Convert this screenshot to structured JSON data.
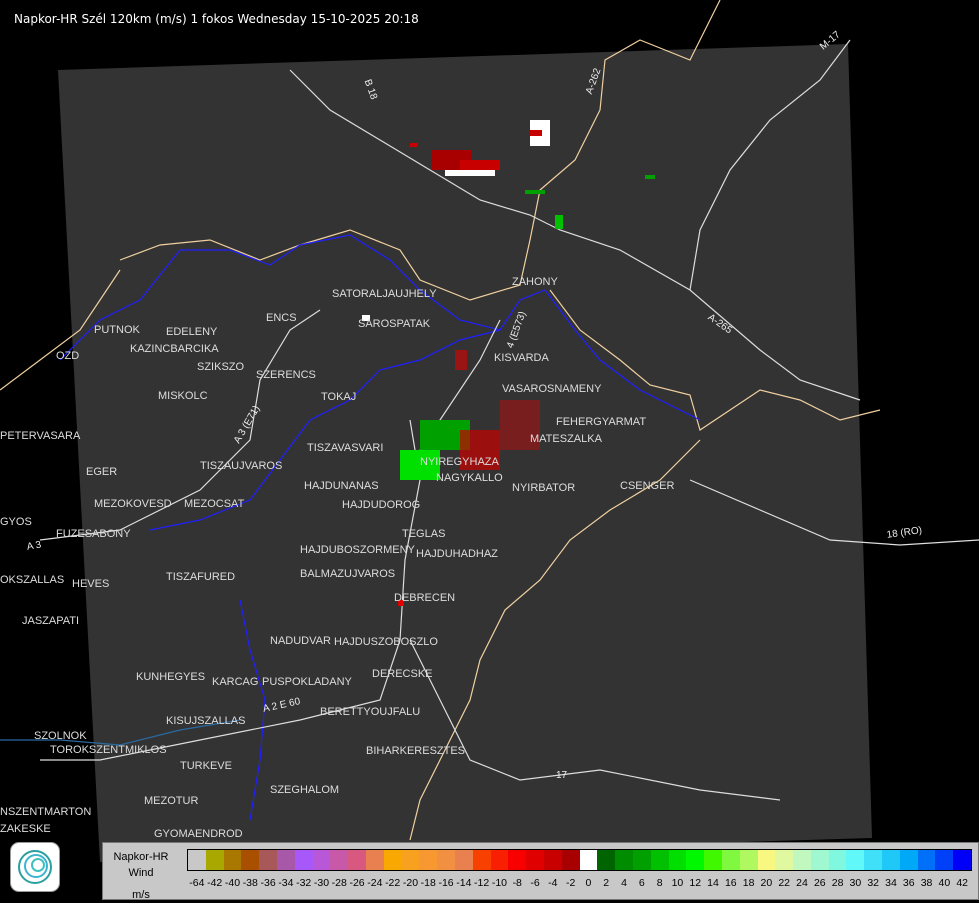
{
  "title": "Napkor-HR Szél 120km (m/s) 1 fokos Wednesday 15-10-2025 20:18",
  "legend": {
    "name": "Napkor-HR",
    "quantity": "Wind",
    "unit": "m/s",
    "colors": [
      "#c8c8c8",
      "#a8a800",
      "#a87800",
      "#a85000",
      "#a85858",
      "#a858a8",
      "#a858f8",
      "#b858d8",
      "#c858a8",
      "#d85880",
      "#e88050",
      "#f8a800",
      "#f8a020",
      "#f89830",
      "#f09040",
      "#e88050",
      "#f84000",
      "#f82000",
      "#f80000",
      "#e00000",
      "#c80000",
      "#a80000",
      "#ffffff",
      "#006400",
      "#008c00",
      "#00a000",
      "#00c000",
      "#00e000",
      "#00f800",
      "#40f800",
      "#80f840",
      "#b0f860",
      "#f8f880",
      "#e0f8a0",
      "#c0f8c0",
      "#a0f8d0",
      "#80f8e0",
      "#60f8f8",
      "#40e0f8",
      "#20c8f8",
      "#00a8f8",
      "#0070f8",
      "#0040f8",
      "#0000f8"
    ],
    "labels": [
      "-64",
      "-42",
      "-40",
      "-38",
      "-36",
      "-34",
      "-32",
      "-30",
      "-28",
      "-26",
      "-24",
      "-22",
      "-20",
      "-18",
      "-16",
      "-14",
      "-12",
      "-10",
      "-8",
      "-6",
      "-4",
      "-2",
      "0",
      "2",
      "4",
      "6",
      "8",
      "10",
      "12",
      "14",
      "16",
      "18",
      "20",
      "22",
      "24",
      "26",
      "28",
      "30",
      "32",
      "34",
      "36",
      "38",
      "40",
      "42"
    ]
  },
  "towns": [
    "SATORALJAUJHELY",
    "ZAHONY",
    "SAROSPATAK",
    "PUTNOK",
    "EDELENY",
    "ENCS",
    "KAZINCBARCIKA",
    "SZIKSZO",
    "SZERENCS",
    "MISKOLC",
    "TOKAJ",
    "KISVARDA",
    "VASAROSNAMENY",
    "FEHERGYARMAT",
    "MATESZALKA",
    "OZD",
    "PETERVASARA",
    "EGER",
    "TISZAUJVAROS",
    "TISZAVASVARI",
    "NYIREGYHAZA",
    "NAGYKALLO",
    "NYIRBATOR",
    "CSENGER",
    "HAJDUNANAS",
    "HAJDUDOROG",
    "MEZOKOVESD",
    "MEZOCSAT",
    "GYOS",
    "FUZESABONY",
    "TEGLAS",
    "HAJDUBOSZORMENY",
    "HAJDUHADHAZ",
    "HEVES",
    "TISZAFURED",
    "BALMAZUJVAROS",
    "DEBRECEN",
    "JASZAPATI",
    "NADUDVAR",
    "HAJDUSZOBOSZLO",
    "KUNHEGYES",
    "KARCAG",
    "PUSPOKLADANY",
    "DERECSKE",
    "KISUJSZALLAS",
    "BERETTYOUJFALU",
    "SZOLNOK",
    "TOROKSZENTMIKLOS",
    "BIHARKERESZTES",
    "TURKEVE",
    "SZEGHALOM",
    "MEZOTUR",
    "GYOMAENDROD",
    "OKSZALLAS",
    "ZAKESKE",
    "NSZENTMARTON"
  ],
  "roads": [
    "B 18",
    "A-262",
    "M-17",
    "A-265",
    "18 (RO)",
    "A 3 (E71)",
    "A 3",
    "4 (E573)",
    "A 2 E 60",
    "17"
  ]
}
